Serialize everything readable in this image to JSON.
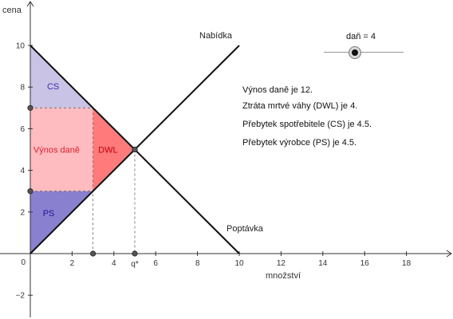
{
  "graph": {
    "y_axis_title": "cena",
    "x_axis_title": "množství",
    "x_ticks": [
      "2",
      "4",
      "6",
      "8",
      "10",
      "12",
      "14",
      "16",
      "18"
    ],
    "y_ticks": [
      "10",
      "8",
      "6",
      "4",
      "2",
      "−2"
    ],
    "origin_label": "0",
    "q_star_label": "q*",
    "supply_label": "Nabídka",
    "demand_label": "Poptávka",
    "regions": {
      "cs": "CS",
      "tax_revenue": "Výnos daně",
      "dwl": "DWL",
      "ps": "PS"
    },
    "colors": {
      "cs": "#c9c3e6",
      "tax_revenue": "#ffbcc0",
      "dwl": "#ff7a7a",
      "ps": "#8a80d0",
      "cs_text": "#3a2fb0",
      "tax_text": "#e01e2b",
      "dwl_text": "#c2000b",
      "ps_text": "#1f1590"
    }
  },
  "slider": {
    "label": "daň = 4",
    "value": 4
  },
  "info_lines": [
    "Výnos daně  je 12.",
    "Ztráta mrtvé váhy (DWL) je 4.",
    "Přebytek spotřebitele (CS) je 4.5.",
    "Přebytek výrobce (PS) je 4.5."
  ],
  "chart_data": {
    "type": "line",
    "xlabel": "množství",
    "ylabel": "cena",
    "xlim": [
      0,
      20
    ],
    "ylim": [
      -3,
      11.5
    ],
    "series": [
      {
        "name": "Nabídka",
        "x": [
          0,
          10
        ],
        "y": [
          0,
          10
        ]
      },
      {
        "name": "Poptávka",
        "x": [
          0,
          10
        ],
        "y": [
          10,
          0
        ]
      }
    ],
    "tax": 4,
    "equilibrium": {
      "q": 5,
      "p": 5
    },
    "tax_quantity": 3,
    "buyer_price": 7,
    "seller_price": 3,
    "tax_revenue": 12,
    "dwl": 4,
    "cs": 4.5,
    "ps": 4.5
  }
}
